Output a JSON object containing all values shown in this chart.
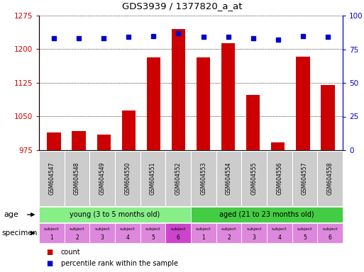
{
  "title": "GDS3939 / 1377820_a_at",
  "samples": [
    "GSM604547",
    "GSM604548",
    "GSM604549",
    "GSM604550",
    "GSM604551",
    "GSM604552",
    "GSM604553",
    "GSM604554",
    "GSM604555",
    "GSM604556",
    "GSM604557",
    "GSM604558"
  ],
  "counts": [
    1015,
    1017,
    1010,
    1063,
    1182,
    1245,
    1182,
    1213,
    1098,
    992,
    1183,
    1120
  ],
  "percentiles": [
    83,
    83,
    83,
    84,
    85,
    87,
    84,
    84,
    83,
    82,
    85,
    84
  ],
  "ylim_left": [
    975,
    1275
  ],
  "ylim_right": [
    0,
    100
  ],
  "yticks_left": [
    975,
    1050,
    1125,
    1200,
    1275
  ],
  "yticks_right": [
    0,
    25,
    50,
    75,
    100
  ],
  "bar_color": "#cc0000",
  "dot_color": "#0000cc",
  "age_young_color": "#88ee88",
  "age_aged_color": "#44cc44",
  "specimen_normal_color": "#dd88dd",
  "specimen_highlight_color": "#cc44cc",
  "specimen_highlight_idx": 5,
  "age_groups": [
    {
      "label": "young (3 to 5 months old)",
      "start": 0,
      "end": 6
    },
    {
      "label": "aged (21 to 23 months old)",
      "start": 6,
      "end": 12
    }
  ],
  "specimen_labels_top": [
    "subject",
    "subject",
    "subject",
    "subject",
    "subject",
    "subject",
    "subject",
    "subject",
    "subject",
    "subject",
    "subject",
    "subject"
  ],
  "specimen_labels_num": [
    "1",
    "2",
    "3",
    "4",
    "5",
    "6",
    "1",
    "2",
    "3",
    "4",
    "5",
    "6"
  ],
  "tick_color_left": "#cc0000",
  "tick_color_right": "#0000cc",
  "xticklabel_bg": "#cccccc",
  "fig_width": 5.13,
  "fig_height": 3.84,
  "dpi": 100
}
